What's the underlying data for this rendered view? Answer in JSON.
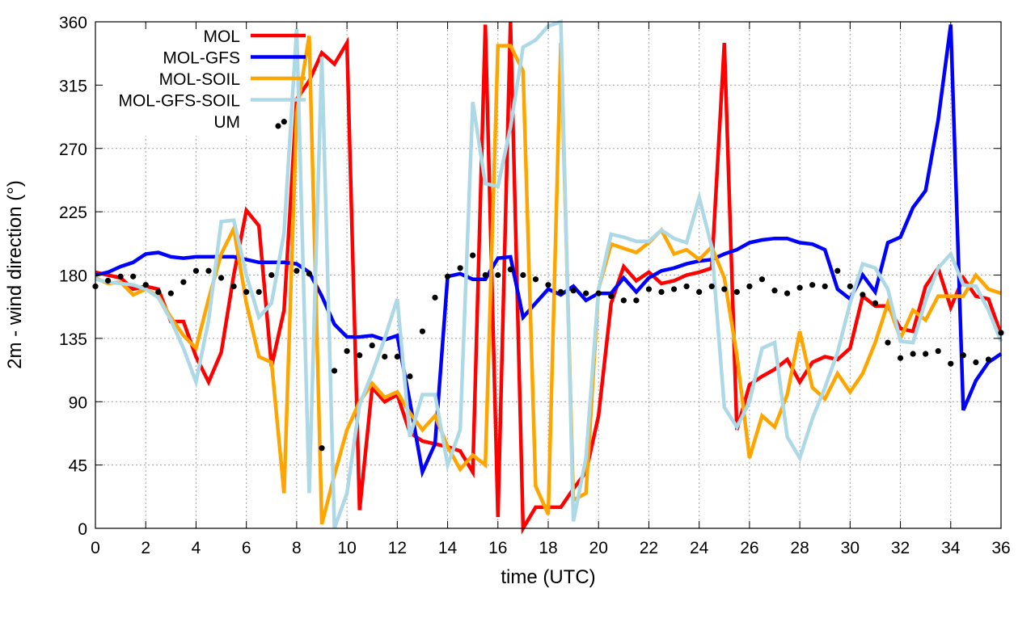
{
  "chart_data": {
    "type": "line",
    "title": "",
    "xlabel": "time (UTC)",
    "ylabel": "2m - wind direction (°)",
    "xlim": [
      0,
      36
    ],
    "ylim": [
      0,
      360
    ],
    "xticks": [
      0,
      2,
      4,
      6,
      8,
      10,
      12,
      14,
      16,
      18,
      20,
      22,
      24,
      26,
      28,
      30,
      32,
      34,
      36
    ],
    "yticks": [
      0,
      45,
      90,
      135,
      180,
      225,
      270,
      315,
      360
    ],
    "grid": true,
    "legend_position": "top-left",
    "x_step": 0.5,
    "series": [
      {
        "name": "MOL",
        "style": "line",
        "color": "#ff0000",
        "values": [
          182,
          180,
          178,
          170,
          172,
          170,
          147,
          147,
          122,
          104,
          125,
          180,
          226,
          215,
          115,
          155,
          305,
          318,
          338,
          330,
          345,
          13,
          100,
          90,
          95,
          68,
          62,
          60,
          58,
          55,
          40,
          358,
          8,
          360,
          0,
          15,
          15,
          15,
          28,
          40,
          80,
          160,
          186,
          176,
          182,
          174,
          176,
          180,
          182,
          185,
          345,
          70,
          102,
          108,
          113,
          120,
          104,
          118,
          122,
          120,
          128,
          165,
          158,
          158,
          142,
          140,
          172,
          185,
          157,
          178,
          165,
          163,
          138
        ]
      },
      {
        "name": "MOL-GFS",
        "style": "line",
        "color": "#0000ff",
        "values": [
          180,
          182,
          186,
          189,
          195,
          196,
          193,
          192,
          193,
          193,
          193,
          193,
          191,
          189,
          189,
          189,
          188,
          182,
          165,
          145,
          136,
          136,
          137,
          134,
          137,
          90,
          40,
          60,
          179,
          181,
          177,
          177,
          192,
          193,
          150,
          160,
          170,
          166,
          172,
          162,
          167,
          167,
          178,
          168,
          178,
          183,
          185,
          188,
          190,
          191,
          195,
          198,
          203,
          205,
          206,
          206,
          203,
          202,
          198,
          170,
          163,
          180,
          168,
          203,
          207,
          228,
          240,
          290,
          358,
          84,
          105,
          118,
          124
        ]
      },
      {
        "name": "MOL-SOIL",
        "style": "line",
        "color": "#ffa500",
        "values": [
          178,
          174,
          175,
          166,
          170,
          165,
          150,
          137,
          128,
          163,
          195,
          213,
          160,
          122,
          118,
          25,
          295,
          350,
          3,
          38,
          70,
          90,
          103,
          93,
          97,
          82,
          70,
          80,
          58,
          42,
          52,
          45,
          343,
          343,
          325,
          30,
          10,
          345,
          20,
          25,
          170,
          202,
          199,
          196,
          203,
          212,
          195,
          198,
          191,
          200,
          178,
          123,
          50,
          80,
          72,
          95,
          140,
          100,
          92,
          110,
          97,
          110,
          132,
          160,
          135,
          155,
          148,
          165,
          165,
          165,
          180,
          170,
          167
        ]
      },
      {
        "name": "MOL-GFS-SOIL",
        "style": "line",
        "color": "#add8e6",
        "values": [
          177,
          175,
          174,
          173,
          170,
          164,
          148,
          128,
          104,
          148,
          218,
          219,
          180,
          150,
          160,
          210,
          355,
          25,
          335,
          0,
          25,
          88,
          110,
          135,
          163,
          65,
          95,
          95,
          45,
          70,
          303,
          245,
          243,
          285,
          342,
          347,
          357,
          360,
          5,
          50,
          170,
          209,
          207,
          204,
          204,
          212,
          206,
          203,
          235,
          200,
          86,
          72,
          90,
          128,
          132,
          65,
          50,
          78,
          100,
          125,
          160,
          188,
          185,
          170,
          133,
          132,
          162,
          185,
          195,
          173,
          172,
          155,
          133
        ]
      },
      {
        "name": "UM",
        "style": "points",
        "color": "#000000",
        "values": [
          172,
          176,
          179,
          179,
          173,
          168,
          167,
          175,
          183,
          183,
          178,
          172,
          168,
          168,
          180,
          289,
          183,
          181,
          57,
          112,
          126,
          123,
          130,
          122,
          122,
          108,
          140,
          164,
          179,
          185,
          194,
          180,
          180,
          184,
          180,
          177,
          173,
          168,
          169,
          167,
          167,
          165,
          162,
          162,
          170,
          168,
          170,
          172,
          168,
          172,
          170,
          168,
          172,
          177,
          169,
          167,
          171,
          173,
          172,
          183,
          172,
          166,
          160,
          132,
          121,
          124,
          124,
          126,
          117,
          123,
          118,
          120,
          139
        ]
      }
    ]
  }
}
